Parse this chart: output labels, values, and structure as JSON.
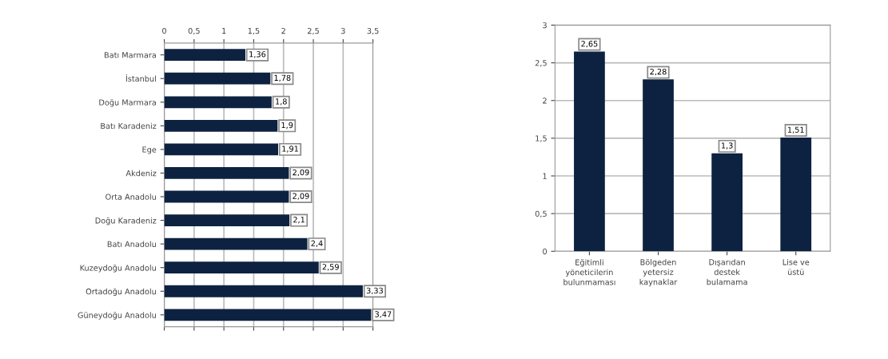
{
  "chart_data": [
    {
      "type": "bar",
      "orientation": "horizontal",
      "categories": [
        "Batı Marmara",
        "İstanbul",
        "Doğu Marmara",
        "Batı Karadeniz",
        "Ege",
        "Akdeniz",
        "Orta Anadolu",
        "Doğu Karadeniz",
        "Batı Anadolu",
        "Kuzeydoğu Anadolu",
        "Ortadoğu Anadolu",
        "Güneydoğu Anadolu"
      ],
      "values": [
        1.36,
        1.78,
        1.8,
        1.9,
        1.91,
        2.09,
        2.09,
        2.1,
        2.4,
        2.59,
        3.33,
        3.47
      ],
      "value_labels": [
        "1,36",
        "1,78",
        "1,8",
        "1,9",
        "1,91",
        "2,09",
        "2,09",
        "2,1",
        "2,4",
        "2,59",
        "3,33",
        "3,47"
      ],
      "color": "#0d2240",
      "xlim": [
        0,
        3.5
      ],
      "xticks": [
        0,
        {
          "value": 0.5,
          "label": "0,5"
        },
        1,
        {
          "value": 1.5,
          "label": "1,5"
        },
        2,
        {
          "value": 2.5,
          "label": "2,5"
        },
        3,
        {
          "value": 3.5,
          "label": "3,5"
        }
      ],
      "grid": "x"
    },
    {
      "type": "bar",
      "categories": [
        "Eğitimli\nyöneticilerin\nbulunmaması",
        "Bölgeden\nyetersiz\nkaynaklar",
        "Dışarıdan\ndestek\nbulamama",
        "Lise ve\nüstü"
      ],
      "values": [
        2.65,
        2.28,
        1.3,
        1.51
      ],
      "value_labels": [
        "2,65",
        "2,28",
        "1,3",
        "1,51"
      ],
      "color": "#0d2240",
      "ylim": [
        0,
        3
      ],
      "yticks": [
        0,
        {
          "value": 0.5,
          "label": "0,5"
        },
        1,
        {
          "value": 1.5,
          "label": "1,5"
        },
        2,
        {
          "value": 2.5,
          "label": "2,5"
        },
        3
      ],
      "grid": "y"
    }
  ]
}
